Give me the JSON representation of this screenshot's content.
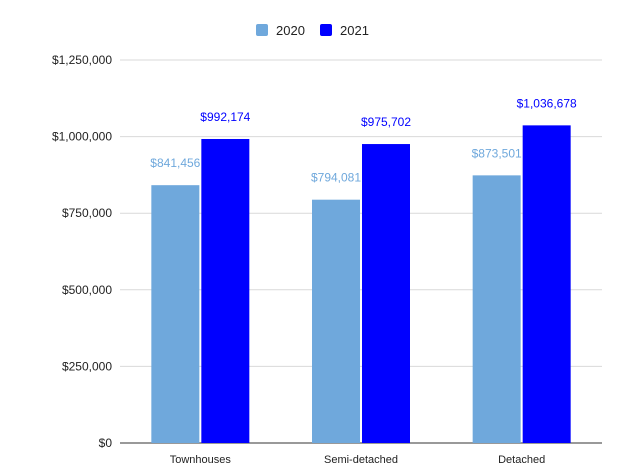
{
  "chart_data": {
    "type": "bar",
    "title": "",
    "xlabel": "",
    "ylabel": "",
    "categories": [
      "Townhouses",
      "Semi-detached",
      "Detached"
    ],
    "series": [
      {
        "name": "2020",
        "color": "#6fa8dc",
        "values": [
          841456,
          794081,
          873501
        ],
        "labels": [
          "$841,456",
          "$794,081",
          "$873,501"
        ]
      },
      {
        "name": "2021",
        "color": "#0000ff",
        "values": [
          992174,
          975702,
          1036678
        ],
        "labels": [
          "$992,174",
          "$975,702",
          "$1,036,678"
        ]
      }
    ],
    "ylim": [
      0,
      1250000
    ],
    "yticks": [
      0,
      250000,
      500000,
      750000,
      1000000,
      1250000
    ],
    "ytick_labels": [
      "$0",
      "$250,000",
      "$500,000",
      "$750,000",
      "$1,000,000",
      "$1,250,000"
    ],
    "grid": true,
    "legend_position": "top-center"
  }
}
